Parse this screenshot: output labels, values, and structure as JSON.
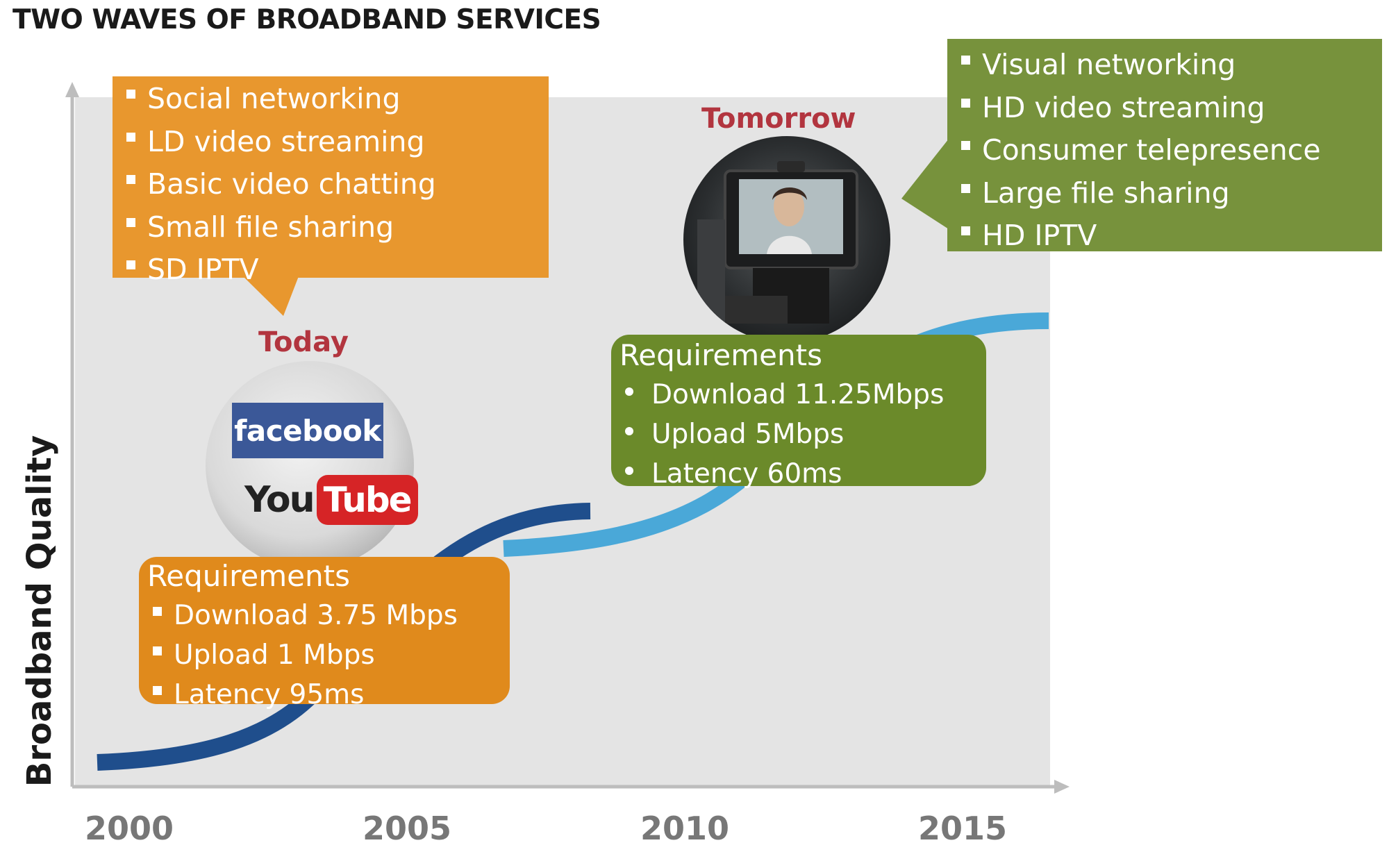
{
  "title": "TWO WAVES OF BROADBAND SERVICES",
  "y_axis_label": "Broadband Quality",
  "x_ticks": [
    "2000",
    "2005",
    "2010",
    "2015"
  ],
  "today": {
    "label": "Today",
    "services": [
      "Social networking",
      "LD video streaming",
      "Basic video chatting",
      "Small file sharing",
      "SD IPTV"
    ],
    "requirements_title": "Requirements",
    "requirements": [
      "Download 3.75 Mbps",
      "Upload 1 Mbps",
      "Latency 95ms"
    ],
    "logos": {
      "facebook": "facebook",
      "youtube_you": "You",
      "youtube_tube": "Tube"
    }
  },
  "tomorrow": {
    "label": "Tomorrow",
    "services": [
      "Visual networking",
      "HD video streaming",
      "Consumer telepresence",
      "Large file sharing",
      "HD IPTV"
    ],
    "requirements_title": "Requirements",
    "requirements": [
      "Download 11.25Mbps",
      "Upload 5Mbps",
      "Latency 60ms"
    ]
  },
  "colors": {
    "today_box": "#e8972e",
    "today_req": "#e08a1c",
    "tomorrow_box": "#77923c",
    "tomorrow_req": "#6b8a2a",
    "wave1": "#1f4e8c",
    "wave2": "#4aa8d8",
    "label_red": "#b2353f"
  }
}
